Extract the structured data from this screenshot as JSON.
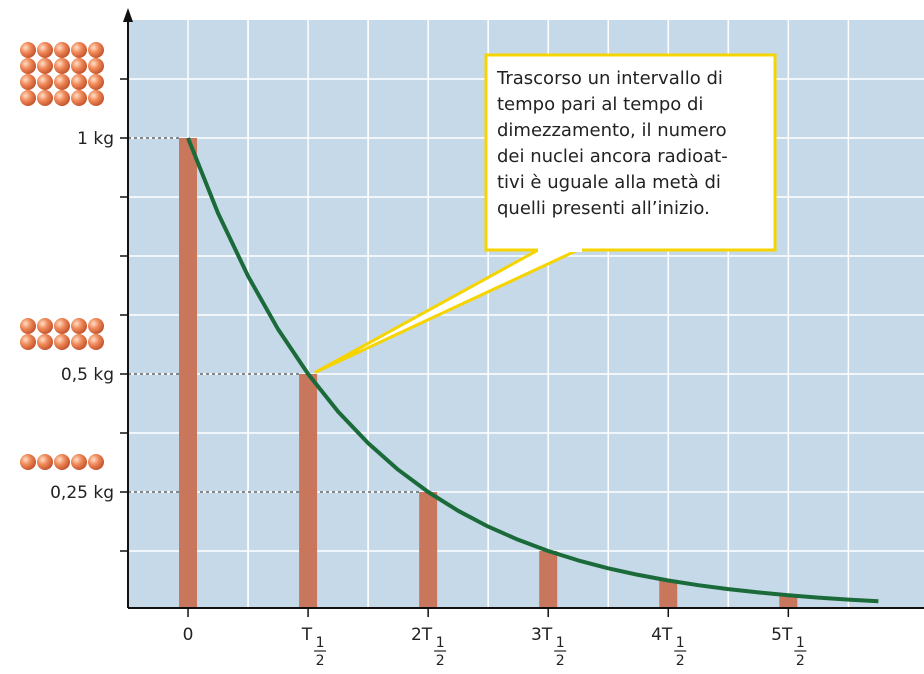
{
  "chart_data": {
    "type": "bar",
    "x": [
      0,
      1,
      2,
      3,
      4,
      5
    ],
    "values": [
      1,
      0.5,
      0.25,
      0.125,
      0.0625,
      0.03125
    ],
    "color": "#c8775c",
    "curve": {
      "type": "line",
      "color": "#1b6b3a",
      "x": [
        0,
        0.25,
        0.5,
        0.75,
        1,
        1.25,
        1.5,
        1.75,
        2,
        2.25,
        2.5,
        2.75,
        3,
        3.25,
        3.5,
        3.75,
        4,
        4.25,
        4.5,
        4.75,
        5,
        5.25,
        5.5,
        5.75
      ],
      "values": [
        1,
        0.8409,
        0.7071,
        0.5946,
        0.5,
        0.4204,
        0.3536,
        0.2973,
        0.25,
        0.2102,
        0.1768,
        0.1487,
        0.125,
        0.1051,
        0.0884,
        0.0743,
        0.0625,
        0.0526,
        0.0442,
        0.0372,
        0.0313,
        0.0263,
        0.0221,
        0.0186
      ]
    },
    "xlim": [
      -0.5,
      6.13
    ],
    "ylim": [
      0,
      1.25
    ],
    "xticks": [
      {
        "value": 0,
        "label": "0"
      },
      {
        "value": 1,
        "label": "T",
        "fraction": [
          "1",
          "2"
        ]
      },
      {
        "value": 2,
        "label": "2T",
        "fraction": [
          "1",
          "2"
        ]
      },
      {
        "value": 3,
        "label": "3T",
        "fraction": [
          "1",
          "2"
        ]
      },
      {
        "value": 4,
        "label": "4T",
        "fraction": [
          "1",
          "2"
        ]
      },
      {
        "value": 5,
        "label": "5T",
        "fraction": [
          "1",
          "2"
        ]
      }
    ],
    "yticks": [
      {
        "value": 1,
        "label": "1 kg"
      },
      {
        "value": 0.5,
        "label": "0,5 kg"
      },
      {
        "value": 0.25,
        "label": "0,25 kg"
      }
    ],
    "minor_yticks": [
      0.125,
      0.375,
      0.625,
      0.75,
      0.875,
      1.125
    ],
    "grid": true,
    "annotation": {
      "lines": [
        "Trascorso un intervallo di",
        "tempo pari al tempo di",
        "dimezzamento, il numero",
        "dei nuclei ancora radioat-",
        "tivi è uguale alla metà di",
        "quelli presenti all’inizio."
      ]
    }
  }
}
